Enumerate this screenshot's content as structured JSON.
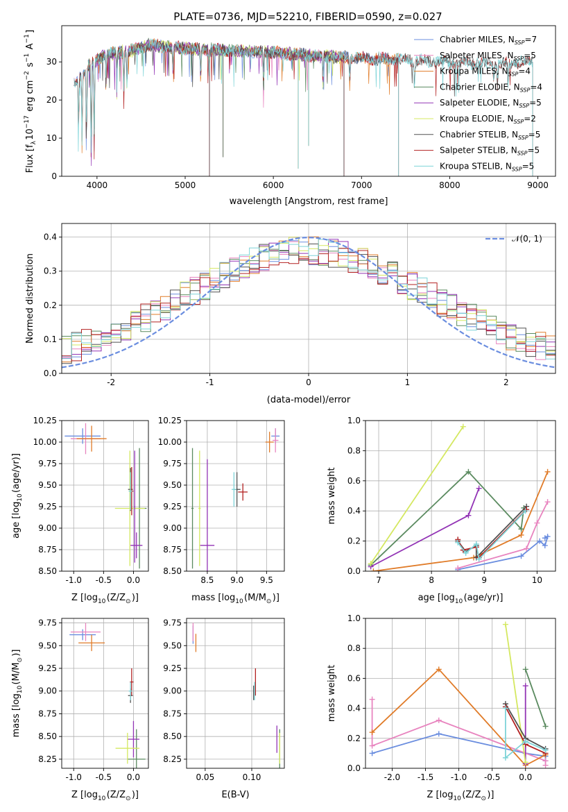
{
  "figure": {
    "title": "PLATE=0736, MJD=52210, FIBERID=0590, z=0.027"
  },
  "chart_data": [
    {
      "id": "spectrum",
      "type": "line",
      "xlabel": "wavelength [Angstrom, rest frame]",
      "ylabel": "Flux [fλ10⁻¹⁷ erg cm⁻² s⁻¹ A⁻¹]",
      "xlim": [
        3600,
        9200
      ],
      "ylim": [
        0,
        39.5
      ],
      "xticks": [
        4000,
        5000,
        6000,
        7000,
        8000,
        9000
      ],
      "yticks": [
        0,
        10,
        20,
        30
      ],
      "grid": false,
      "legend_position": "top-right",
      "legend": [
        "Chabrier MILES, NSSP=7",
        "Salpeter MILES, NSSP=5",
        "Kroupa MILES, NSSP=4",
        "Chabrier ELODIE, NSSP=4",
        "Salpeter ELODIE, NSSP=5",
        "Kroupa ELODIE, NSSP=2",
        "Chabrier STELIB, NSSP=5",
        "Salpeter STELIB, NSSP=5",
        "Kroupa STELIB, NSSP=5"
      ],
      "legend_html": [
        [
          "Chabrier MILES, N",
          "SSP",
          "=7"
        ],
        [
          "Salpeter MILES, N",
          "SSP",
          "=5"
        ],
        [
          "Kroupa MILES, N",
          "SSP",
          "=4"
        ],
        [
          "Chabrier ELODIE, N",
          "SSP",
          "=4"
        ],
        [
          "Salpeter ELODIE, N",
          "SSP",
          "=5"
        ],
        [
          "Kroupa ELODIE, N",
          "SSP",
          "=2"
        ],
        [
          "Chabrier STELIB, N",
          "SSP",
          "=5"
        ],
        [
          "Salpeter STELIB, N",
          "SSP",
          "=5"
        ],
        [
          "Kroupa STELIB, N",
          "SSP",
          "=5"
        ]
      ],
      "colors": [
        "#6a8ddf",
        "#e884bf",
        "#e07b28",
        "#5a8a5f",
        "#9233b5",
        "#d4e860",
        "#505050",
        "#b22020",
        "#7ed4d8"
      ],
      "ranges": {
        "MILES": [
          3740,
          7420
        ],
        "ELODIE": [
          3900,
          6800
        ],
        "STELIB": [
          3740,
          8940
        ]
      },
      "continuum": [
        [
          3750,
          24
        ],
        [
          3900,
          29
        ],
        [
          4100,
          32
        ],
        [
          4400,
          33
        ],
        [
          4600,
          34.5
        ],
        [
          5000,
          33.5
        ],
        [
          5500,
          33
        ],
        [
          6000,
          32.5
        ],
        [
          6500,
          31.5
        ],
        [
          7000,
          31
        ],
        [
          7500,
          30.5
        ],
        [
          8000,
          30
        ],
        [
          8500,
          29.5
        ],
        [
          8900,
          30
        ]
      ],
      "absorption_lines": [
        [
          3790,
          12
        ],
        [
          3830,
          16
        ],
        [
          3880,
          18
        ],
        [
          3934,
          24
        ],
        [
          3968,
          22
        ],
        [
          4102,
          8
        ],
        [
          4227,
          5
        ],
        [
          4304,
          10
        ],
        [
          4340,
          8
        ],
        [
          4861,
          6
        ],
        [
          5176,
          7
        ],
        [
          5270,
          5
        ],
        [
          5890,
          8
        ],
        [
          6563,
          6
        ],
        [
          6867,
          6
        ],
        [
          7600,
          7
        ],
        [
          8498,
          5
        ],
        [
          8542,
          6
        ],
        [
          8662,
          6
        ]
      ],
      "spike_lines": [
        [
          5276,
          0
        ],
        [
          5430,
          5
        ],
        [
          6283,
          2
        ],
        [
          6400,
          8
        ],
        [
          6800,
          0
        ],
        [
          7420,
          0
        ]
      ]
    },
    {
      "id": "residuals",
      "type": "histogram",
      "xlabel": "(data-model)/error",
      "ylabel": "Normed distribution",
      "xlim": [
        -2.5,
        2.5
      ],
      "ylim": [
        0,
        0.44
      ],
      "xticks": [
        -2,
        -1,
        0,
        1,
        2
      ],
      "yticks": [
        0.0,
        0.1,
        0.2,
        0.3,
        0.4
      ],
      "grid": true,
      "legend": [
        "𝒩(0, 1)"
      ],
      "legend_position": "top-right",
      "bins": 50,
      "reference_curve": "gaussian(0, 1)",
      "reference_color": "#6a8ddf"
    },
    {
      "id": "age-vs-Z",
      "type": "scatter-errorbars",
      "xlabel": "Z [log10(Z/Z⊙)]",
      "ylabel": "age [log10(age/yr)]",
      "xlim": [
        -1.2,
        0.25
      ],
      "ylim": [
        8.5,
        10.25
      ],
      "xticks": [
        -1.0,
        -0.5,
        0.0
      ],
      "yticks": [
        8.5,
        8.75,
        9.0,
        9.25,
        9.5,
        9.75,
        10.0,
        10.25
      ],
      "grid": true,
      "points": [
        {
          "series": 0,
          "x": -0.85,
          "xerr": 0.3,
          "y": 10.07,
          "yerr": 0.09
        },
        {
          "series": 1,
          "x": -0.8,
          "xerr": 0.25,
          "y": 10.04,
          "yerr": 0.18
        },
        {
          "series": 2,
          "x": -0.7,
          "xerr": 0.25,
          "y": 10.04,
          "yerr": 0.15
        },
        {
          "series": 3,
          "x": 0.1,
          "xerr": 0.12,
          "y": 9.23,
          "yerr": 0.7
        },
        {
          "series": 4,
          "x": 0.05,
          "xerr": 0.1,
          "y": 8.8,
          "yerr": 0.15
        },
        {
          "series": 5,
          "x": -0.06,
          "xerr": 0.25,
          "y": 9.23,
          "yerr": 0.67
        },
        {
          "series": 6,
          "x": -0.05,
          "xerr": 0.04,
          "y": 9.45,
          "yerr": 0.25
        },
        {
          "series": 7,
          "x": -0.03,
          "xerr": 0.03,
          "y": 9.43,
          "yerr": 0.28
        },
        {
          "series": 4,
          "x": 0.02,
          "xerr": 0.01,
          "y": 9.25,
          "yerr": 0.65
        },
        {
          "series": 8,
          "x": -0.05,
          "xerr": 0.03,
          "y": 9.43,
          "yerr": 0.22
        }
      ]
    },
    {
      "id": "age-vs-mass",
      "type": "scatter-errorbars",
      "xlabel": "mass [log10(M/M⊙)]",
      "ylabel": "",
      "xlim": [
        8.15,
        9.8
      ],
      "ylim": [
        8.5,
        10.25
      ],
      "xticks": [
        8.5,
        9.0,
        9.5
      ],
      "yticks": [
        8.5,
        8.75,
        9.0,
        9.25,
        9.5,
        9.75,
        10.0,
        10.25
      ],
      "grid": true,
      "points": [
        {
          "series": 0,
          "x": 9.65,
          "xerr": 0.07,
          "y": 10.07,
          "yerr": 0.09
        },
        {
          "series": 1,
          "x": 9.65,
          "xerr": 0.05,
          "y": 10.02,
          "yerr": 0.14
        },
        {
          "series": 2,
          "x": 9.55,
          "xerr": 0.07,
          "y": 10.0,
          "yerr": 0.12
        },
        {
          "series": 3,
          "x": 8.25,
          "xerr": 0.02,
          "y": 9.23,
          "yerr": 0.7
        },
        {
          "series": 4,
          "x": 8.5,
          "xerr": 0.12,
          "y": 8.8,
          "yerr": 1.0
        },
        {
          "series": 5,
          "x": 8.37,
          "xerr": 0.02,
          "y": 9.23,
          "yerr": 0.67
        },
        {
          "series": 6,
          "x": 9.0,
          "xerr": 0.06,
          "y": 9.45,
          "yerr": 0.2
        },
        {
          "series": 7,
          "x": 9.1,
          "xerr": 0.08,
          "y": 9.42,
          "yerr": 0.1
        },
        {
          "series": 8,
          "x": 8.95,
          "xerr": 0.04,
          "y": 9.45,
          "yerr": 0.2
        }
      ]
    },
    {
      "id": "weight-vs-age",
      "type": "line",
      "xlabel": "age [log10(age/yr)]",
      "ylabel": "mass weight",
      "xlim": [
        6.75,
        10.35
      ],
      "ylim": [
        0.0,
        1.0
      ],
      "xticks": [
        7,
        8,
        9,
        10
      ],
      "yticks": [
        0.0,
        0.2,
        0.4,
        0.6,
        0.8,
        1.0
      ],
      "grid": true,
      "series": [
        {
          "series": 0,
          "points": [
            [
              8.5,
              0.01
            ],
            [
              9.7,
              0.1
            ],
            [
              10.05,
              0.2
            ],
            [
              10.15,
              0.17
            ],
            [
              10.2,
              0.23
            ],
            [
              10.15,
              0.22
            ]
          ]
        },
        {
          "series": 1,
          "points": [
            [
              8.5,
              0.02
            ],
            [
              9.8,
              0.15
            ],
            [
              10.0,
              0.32
            ],
            [
              10.2,
              0.46
            ]
          ]
        },
        {
          "series": 2,
          "points": [
            [
              6.9,
              0.0
            ],
            [
              8.8,
              0.09
            ],
            [
              9.7,
              0.24
            ],
            [
              10.2,
              0.66
            ]
          ]
        },
        {
          "series": 3,
          "points": [
            [
              6.85,
              0.04
            ],
            [
              8.7,
              0.66
            ],
            [
              9.7,
              0.28
            ],
            [
              9.75,
              0.42
            ]
          ]
        },
        {
          "series": 4,
          "points": [
            [
              6.85,
              0.03
            ],
            [
              8.7,
              0.37
            ],
            [
              8.9,
              0.55
            ]
          ]
        },
        {
          "series": 5,
          "points": [
            [
              6.85,
              0.05
            ],
            [
              8.6,
              0.96
            ]
          ]
        },
        {
          "series": 6,
          "points": [
            [
              8.5,
              0.2
            ],
            [
              8.65,
              0.13
            ],
            [
              8.85,
              0.17
            ],
            [
              8.85,
              0.09
            ],
            [
              9.8,
              0.43
            ]
          ]
        },
        {
          "series": 7,
          "points": [
            [
              8.5,
              0.21
            ],
            [
              8.6,
              0.14
            ],
            [
              8.85,
              0.16
            ],
            [
              8.9,
              0.09
            ],
            [
              9.8,
              0.41
            ]
          ]
        },
        {
          "series": 8,
          "points": [
            [
              8.5,
              0.19
            ],
            [
              8.65,
              0.12
            ],
            [
              8.85,
              0.18
            ],
            [
              8.9,
              0.08
            ],
            [
              9.78,
              0.4
            ]
          ]
        }
      ]
    },
    {
      "id": "mass-vs-Z",
      "type": "scatter-errorbars",
      "xlabel": "Z [log10(Z/Z⊙)]",
      "ylabel": "mass [log10(M/M⊙)]",
      "xlim": [
        -1.2,
        0.25
      ],
      "ylim": [
        8.15,
        9.8
      ],
      "xticks": [
        -1.0,
        -0.5,
        0.0
      ],
      "yticks": [
        8.25,
        8.5,
        8.75,
        9.0,
        9.25,
        9.5,
        9.75
      ],
      "grid": true,
      "points": [
        {
          "series": 0,
          "x": -0.85,
          "xerr": 0.22,
          "y": 9.62,
          "yerr": 0.06
        },
        {
          "series": 1,
          "x": -0.8,
          "xerr": 0.25,
          "y": 9.65,
          "yerr": 0.1
        },
        {
          "series": 2,
          "x": -0.7,
          "xerr": 0.22,
          "y": 9.53,
          "yerr": 0.09
        },
        {
          "series": 3,
          "x": 0.05,
          "xerr": 0.15,
          "y": 8.25,
          "yerr": 0.33
        },
        {
          "series": 4,
          "x": 0.0,
          "xerr": 0.1,
          "y": 8.47,
          "yerr": 0.2
        },
        {
          "series": 5,
          "x": -0.1,
          "xerr": 0.2,
          "y": 8.37,
          "yerr": 0.17
        },
        {
          "series": 6,
          "x": -0.05,
          "xerr": 0.04,
          "y": 8.95,
          "yerr": 0.08
        },
        {
          "series": 7,
          "x": -0.03,
          "xerr": 0.03,
          "y": 9.1,
          "yerr": 0.15
        },
        {
          "series": 8,
          "x": -0.05,
          "xerr": 0.03,
          "y": 9.0,
          "yerr": 0.1
        }
      ]
    },
    {
      "id": "mass-vs-ebv",
      "type": "scatter-errorbars",
      "xlabel": "E(B-V)",
      "ylabel": "",
      "xlim": [
        0.03,
        0.135
      ],
      "ylim": [
        8.15,
        9.8
      ],
      "xticks": [
        0.05,
        0.1
      ],
      "yticks": [
        8.25,
        8.5,
        8.75,
        9.0,
        9.25,
        9.5,
        9.75
      ],
      "grid": true,
      "points": [
        {
          "series": 0,
          "x": 0.037,
          "y": 9.62,
          "yerr": 0.1
        },
        {
          "series": 1,
          "x": 0.037,
          "y": 9.65,
          "yerr": 0.1
        },
        {
          "series": 2,
          "x": 0.04,
          "y": 9.53,
          "yerr": 0.1
        },
        {
          "series": 3,
          "x": 0.13,
          "y": 8.25,
          "yerr": 0.33
        },
        {
          "series": 4,
          "x": 0.127,
          "y": 8.47,
          "yerr": 0.15
        },
        {
          "series": 5,
          "x": 0.13,
          "y": 8.37,
          "yerr": 0.17
        },
        {
          "series": 6,
          "x": 0.102,
          "y": 8.98,
          "yerr": 0.08
        },
        {
          "series": 7,
          "x": 0.104,
          "y": 9.1,
          "yerr": 0.15
        },
        {
          "series": 8,
          "x": 0.103,
          "y": 9.0,
          "yerr": 0.1
        }
      ]
    },
    {
      "id": "weight-vs-Z",
      "type": "line",
      "xlabel": "Z [log10(Z/Z⊙)]",
      "ylabel": "mass weight",
      "xlim": [
        -2.4,
        0.45
      ],
      "ylim": [
        0.0,
        1.0
      ],
      "xticks": [
        -2.0,
        -1.5,
        -1.0,
        -0.5,
        0.0
      ],
      "yticks": [
        0.0,
        0.2,
        0.4,
        0.6,
        0.8,
        1.0
      ],
      "grid": true,
      "series": [
        {
          "series": 0,
          "points": [
            [
              -2.3,
              0.1
            ],
            [
              -1.3,
              0.23
            ],
            [
              0.0,
              0.1
            ],
            [
              0.3,
              0.08
            ],
            [
              0.3,
              0.05
            ]
          ]
        },
        {
          "series": 1,
          "points": [
            [
              -2.3,
              0.46
            ],
            [
              -2.3,
              0.15
            ],
            [
              -1.3,
              0.32
            ],
            [
              0.3,
              0.05
            ],
            [
              0.3,
              0.02
            ]
          ]
        },
        {
          "series": 2,
          "points": [
            [
              -2.3,
              0.24
            ],
            [
              -1.3,
              0.66
            ],
            [
              0.0,
              0.02
            ],
            [
              0.3,
              0.09
            ]
          ]
        },
        {
          "series": 3,
          "points": [
            [
              0.0,
              0.66
            ],
            [
              0.3,
              0.28
            ]
          ]
        },
        {
          "series": 4,
          "points": [
            [
              0.0,
              0.55
            ],
            [
              0.0,
              0.03
            ]
          ]
        },
        {
          "series": 5,
          "points": [
            [
              -0.3,
              0.96
            ],
            [
              0.0,
              0.04
            ]
          ]
        },
        {
          "series": 6,
          "points": [
            [
              -0.3,
              0.43
            ],
            [
              0.0,
              0.2
            ],
            [
              0.3,
              0.13
            ]
          ]
        },
        {
          "series": 7,
          "points": [
            [
              -0.3,
              0.41
            ],
            [
              0.0,
              0.16
            ],
            [
              0.3,
              0.1
            ]
          ]
        },
        {
          "series": 8,
          "points": [
            [
              -0.3,
              0.4
            ],
            [
              -0.3,
              0.07
            ],
            [
              0.0,
              0.18
            ],
            [
              0.3,
              0.12
            ]
          ]
        }
      ]
    }
  ]
}
